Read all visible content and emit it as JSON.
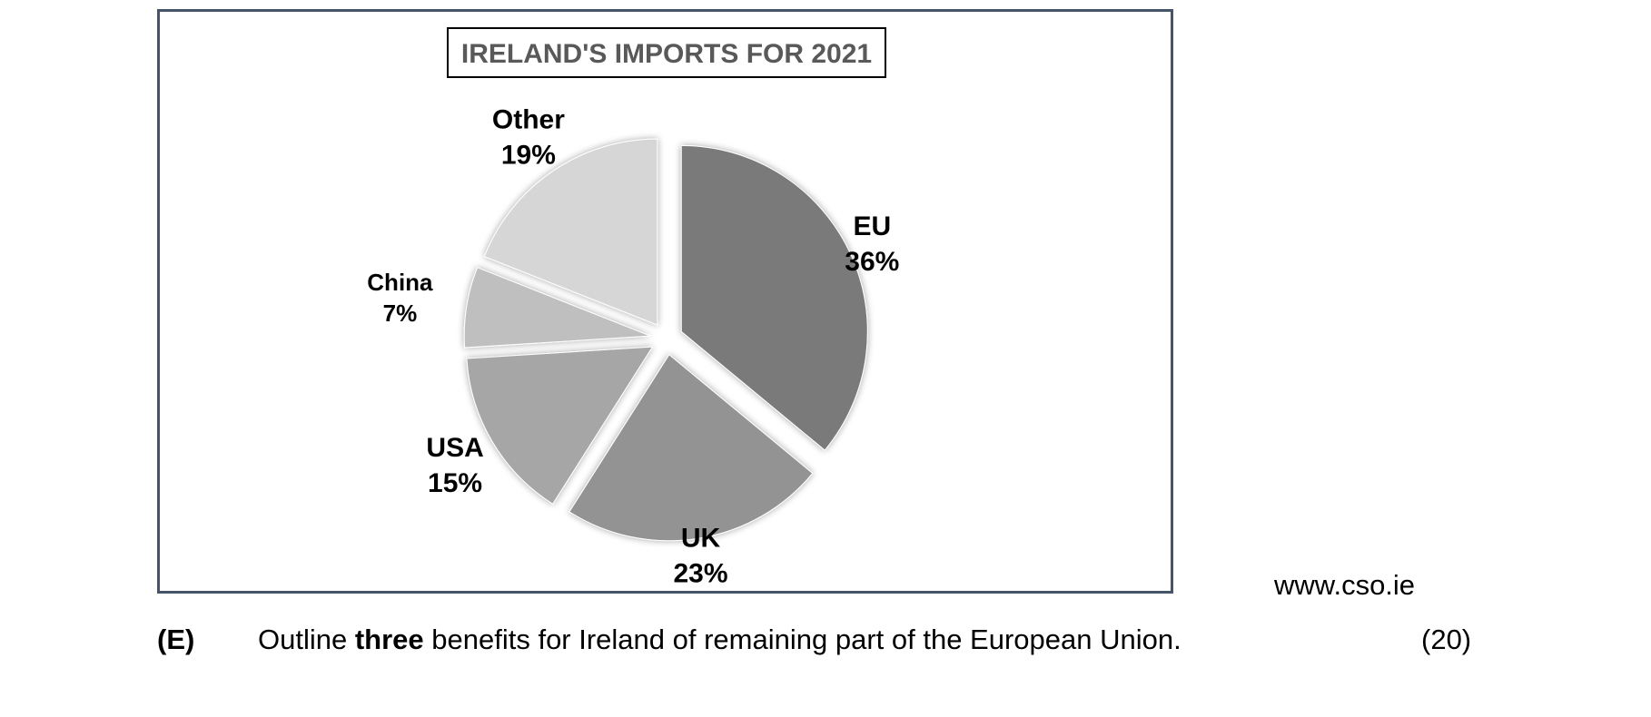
{
  "chart_data": {
    "type": "pie",
    "title": "IRELAND'S IMPORTS FOR 2021",
    "slices": [
      {
        "label": "EU",
        "value": 36,
        "value_label": "36%",
        "color": "#7a7a7a",
        "exploded": true
      },
      {
        "label": "UK",
        "value": 23,
        "value_label": "23%",
        "color": "#939393",
        "exploded": true
      },
      {
        "label": "USA",
        "value": 15,
        "value_label": "15%",
        "color": "#a6a6a6",
        "exploded": true
      },
      {
        "label": "China",
        "value": 7,
        "value_label": "7%",
        "color": "#bfbfbf",
        "exploded": true
      },
      {
        "label": "Other",
        "value": 19,
        "value_label": "19%",
        "color": "#d6d6d6",
        "exploded": true
      }
    ],
    "start_angle": "top, clockwise",
    "legend": "none"
  },
  "source": "www.cso.ie",
  "question": {
    "letter": "(E)",
    "text_before": "Outline ",
    "text_bold": "three",
    "text_after": " benefits for Ireland of remaining part of the European Union.",
    "marks": "(20)"
  },
  "colors": {
    "frame_border": "#44546a",
    "title_text": "#595959"
  }
}
